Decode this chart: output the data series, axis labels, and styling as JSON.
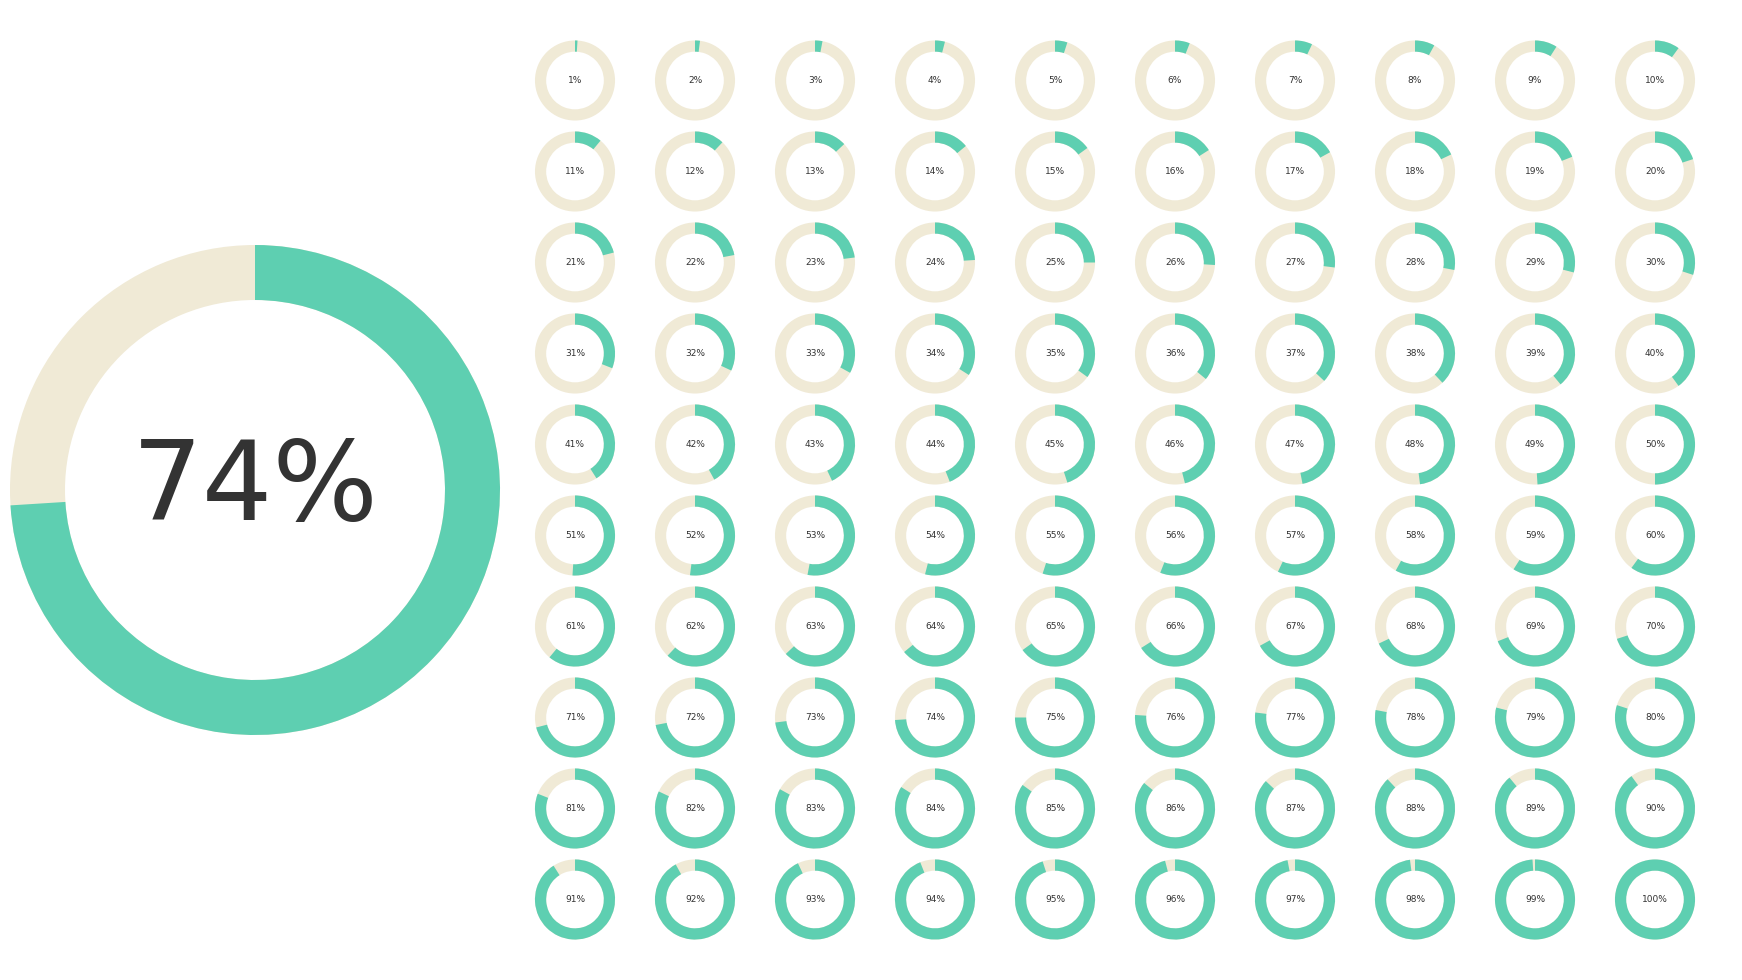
{
  "background_color": "#ffffff",
  "teal_color": "#5ecfb1",
  "cream_color": "#f0ead6",
  "text_color": "#333333",
  "big_circle_pct": 74,
  "small_grid_cols": 10,
  "small_grid_rows": 10,
  "big_font_size": 80,
  "small_font_size": 6.5
}
